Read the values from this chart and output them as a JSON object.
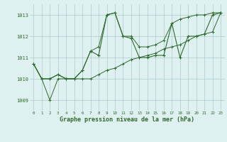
{
  "hours": [
    0,
    1,
    2,
    3,
    4,
    5,
    6,
    7,
    8,
    9,
    10,
    11,
    12,
    13,
    14,
    15,
    16,
    17,
    18,
    19,
    20,
    21,
    22,
    23
  ],
  "pressure_main": [
    1010.7,
    1010.0,
    1010.0,
    1010.2,
    1010.0,
    1010.0,
    1010.4,
    1011.3,
    1011.1,
    1013.0,
    1013.1,
    1012.0,
    1011.9,
    1011.0,
    1011.0,
    1011.1,
    1011.1,
    1012.6,
    1011.0,
    1012.0,
    1012.0,
    1012.1,
    1013.0,
    1013.1
  ],
  "pressure_low": [
    1010.7,
    1010.0,
    1009.0,
    1010.0,
    1010.0,
    1010.0,
    1010.0,
    1010.0,
    1010.2,
    1010.4,
    1010.5,
    1010.7,
    1010.9,
    1011.0,
    1011.1,
    1011.2,
    1011.4,
    1011.5,
    1011.6,
    1011.8,
    1012.0,
    1012.1,
    1012.2,
    1013.1
  ],
  "pressure_high": [
    1010.7,
    1010.0,
    1010.0,
    1010.2,
    1010.0,
    1010.0,
    1010.4,
    1011.3,
    1011.5,
    1013.0,
    1013.1,
    1012.0,
    1012.0,
    1011.5,
    1011.5,
    1011.6,
    1011.8,
    1012.6,
    1012.8,
    1012.9,
    1013.0,
    1013.0,
    1013.1,
    1013.1
  ],
  "line_color": "#2d6a2d",
  "bg_color": "#dff0f0",
  "grid_color": "#aacccc",
  "xlabel": "Graphe pression niveau de la mer (hPa)",
  "ylim": [
    1008.5,
    1013.5
  ],
  "yticks": [
    1009,
    1010,
    1011,
    1012,
    1013
  ],
  "xlim": [
    -0.5,
    23.5
  ],
  "ytick_fontsize": 5.0,
  "xtick_fontsize": 4.2,
  "xlabel_fontsize": 6.0
}
